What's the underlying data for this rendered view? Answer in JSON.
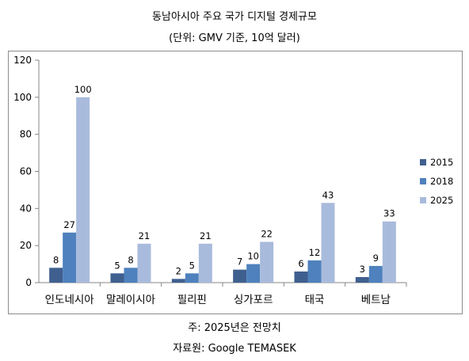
{
  "header": {
    "title": "동남아시아 주요 국가 디지털 경제규모",
    "subtitle": "(단위: GMV 기준, 10억 달러)"
  },
  "footer": {
    "note": "주: 2025년은 전망치",
    "source": "자료원: Google TEMASEK"
  },
  "chart_data": {
    "type": "bar",
    "categories": [
      "인도네시아",
      "말레이시아",
      "필리핀",
      "싱가포르",
      "태국",
      "베트남"
    ],
    "series": [
      {
        "name": "2015",
        "values": [
          8,
          5,
          2,
          7,
          6,
          3
        ],
        "color": "#3f5f8f"
      },
      {
        "name": "2018",
        "values": [
          27,
          8,
          5,
          10,
          12,
          9
        ],
        "color": "#4e81bd"
      },
      {
        "name": "2025",
        "values": [
          100,
          21,
          21,
          22,
          43,
          33
        ],
        "color": "#a9bbdc"
      }
    ],
    "ylim": [
      0,
      120
    ],
    "yticks": [
      0,
      20,
      40,
      60,
      80,
      100,
      120
    ],
    "grid": false,
    "legend": "right"
  }
}
